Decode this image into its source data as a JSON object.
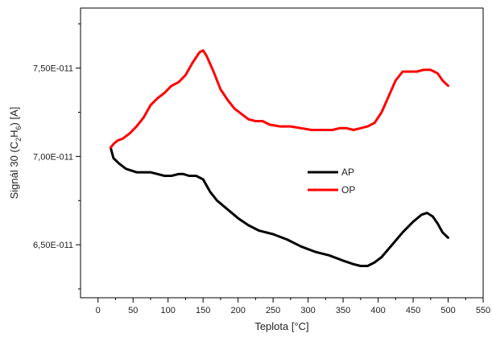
{
  "chart_data": {
    "type": "line",
    "xlabel": "Teplota [°C]",
    "ylabel_main": "Signál 30 (C",
    "ylabel_sub1": "2",
    "ylabel_mid": "H",
    "ylabel_sub2": "6",
    "ylabel_end": ")   [A]",
    "xlim": [
      -25,
      550
    ],
    "ylim": [
      6.2e-11,
      7.84e-11
    ],
    "grid": false,
    "legend_position": "center-right",
    "x_ticks": [
      0,
      50,
      100,
      150,
      200,
      250,
      300,
      350,
      400,
      450,
      500,
      550
    ],
    "x_tick_labels": [
      "0",
      "50",
      "100",
      "150",
      "200",
      "250",
      "300",
      "350",
      "400",
      "450",
      "500",
      "550"
    ],
    "y_ticks": [
      6.5e-11,
      7e-11,
      7.5e-11
    ],
    "y_tick_labels": [
      "6,50E-011",
      "7,00E-011",
      "7,50E-011"
    ],
    "series": [
      {
        "name": "AP",
        "color": "#000000",
        "x": [
          18,
          22,
          30,
          40,
          55,
          65,
          75,
          85,
          95,
          105,
          115,
          122,
          130,
          140,
          150,
          160,
          170,
          185,
          200,
          215,
          230,
          250,
          270,
          290,
          310,
          330,
          350,
          365,
          375,
          385,
          395,
          405,
          420,
          435,
          450,
          462,
          470,
          478,
          485,
          492,
          500
        ],
        "y": [
          7.05e-11,
          6.99e-11,
          6.96e-11,
          6.93e-11,
          6.91e-11,
          6.91e-11,
          6.91e-11,
          6.9e-11,
          6.89e-11,
          6.89e-11,
          6.9e-11,
          6.9e-11,
          6.89e-11,
          6.89e-11,
          6.87e-11,
          6.8e-11,
          6.75e-11,
          6.7e-11,
          6.65e-11,
          6.61e-11,
          6.58e-11,
          6.56e-11,
          6.53e-11,
          6.49e-11,
          6.46e-11,
          6.44e-11,
          6.41e-11,
          6.39e-11,
          6.38e-11,
          6.38e-11,
          6.4e-11,
          6.43e-11,
          6.5e-11,
          6.57e-11,
          6.63e-11,
          6.67e-11,
          6.68e-11,
          6.66e-11,
          6.62e-11,
          6.57e-11,
          6.54e-11
        ]
      },
      {
        "name": "OP",
        "color": "#ff0000",
        "x": [
          18,
          22,
          28,
          35,
          45,
          55,
          65,
          75,
          85,
          95,
          105,
          115,
          125,
          135,
          145,
          150,
          155,
          165,
          175,
          185,
          195,
          205,
          215,
          225,
          235,
          245,
          260,
          275,
          290,
          305,
          320,
          335,
          345,
          355,
          365,
          375,
          385,
          395,
          405,
          415,
          425,
          435,
          445,
          455,
          465,
          475,
          485,
          492,
          500
        ],
        "y": [
          7.05e-11,
          7.07e-11,
          7.09e-11,
          7.1e-11,
          7.13e-11,
          7.17e-11,
          7.22e-11,
          7.29e-11,
          7.33e-11,
          7.36e-11,
          7.4e-11,
          7.42e-11,
          7.46e-11,
          7.53e-11,
          7.59e-11,
          7.6e-11,
          7.57e-11,
          7.48e-11,
          7.38e-11,
          7.32e-11,
          7.27e-11,
          7.24e-11,
          7.21e-11,
          7.2e-11,
          7.2e-11,
          7.18e-11,
          7.17e-11,
          7.17e-11,
          7.16e-11,
          7.15e-11,
          7.15e-11,
          7.15e-11,
          7.16e-11,
          7.16e-11,
          7.15e-11,
          7.16e-11,
          7.17e-11,
          7.19e-11,
          7.25e-11,
          7.34e-11,
          7.43e-11,
          7.48e-11,
          7.48e-11,
          7.48e-11,
          7.49e-11,
          7.49e-11,
          7.47e-11,
          7.43e-11,
          7.4e-11
        ]
      }
    ]
  }
}
